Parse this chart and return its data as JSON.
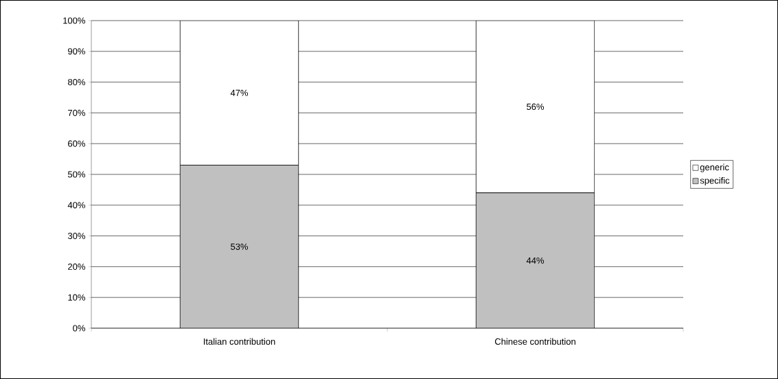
{
  "chart_data": {
    "type": "bar",
    "stacked": true,
    "categories": [
      "Italian contribution",
      "Chinese contribution"
    ],
    "series": [
      {
        "name": "specific",
        "color": "#c0c0c0",
        "values": [
          53,
          44
        ],
        "value_labels": [
          "53%",
          "44%"
        ]
      },
      {
        "name": "generic",
        "color": "#ffffff",
        "values": [
          47,
          56
        ],
        "value_labels": [
          "47%",
          "56%"
        ]
      }
    ],
    "ylim": [
      0,
      100
    ],
    "yticks": [
      {
        "value": 0,
        "label": "0%"
      },
      {
        "value": 10,
        "label": "10%"
      },
      {
        "value": 20,
        "label": "20%"
      },
      {
        "value": 30,
        "label": "30%"
      },
      {
        "value": 40,
        "label": "40%"
      },
      {
        "value": 50,
        "label": "50%"
      },
      {
        "value": 60,
        "label": "60%"
      },
      {
        "value": 70,
        "label": "70%"
      },
      {
        "value": 80,
        "label": "80%"
      },
      {
        "value": 90,
        "label": "90%"
      },
      {
        "value": 100,
        "label": "100%"
      }
    ],
    "grid": "y",
    "legend": "right"
  }
}
